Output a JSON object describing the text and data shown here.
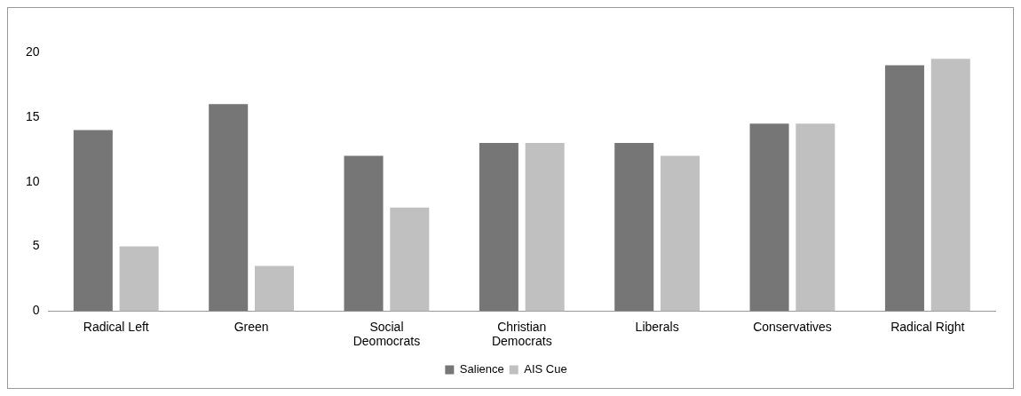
{
  "chart_data": {
    "type": "bar",
    "categories": [
      "Radical Left",
      "Green",
      "Social Deomocrats",
      "Christian Democrats",
      "Liberals",
      "Conservatives",
      "Radical Right"
    ],
    "series": [
      {
        "name": "Salience",
        "color": "#767676",
        "values": [
          14,
          16,
          12,
          13,
          13,
          14.5,
          19
        ]
      },
      {
        "name": "AIS Cue",
        "color": "#c0c0c0",
        "values": [
          5,
          3.5,
          8,
          13,
          12,
          14.5,
          19.5
        ]
      }
    ],
    "ylim": [
      0,
      20
    ],
    "yticks": [
      0,
      5,
      10,
      15,
      20
    ],
    "grid": false,
    "legend": "bottom"
  }
}
